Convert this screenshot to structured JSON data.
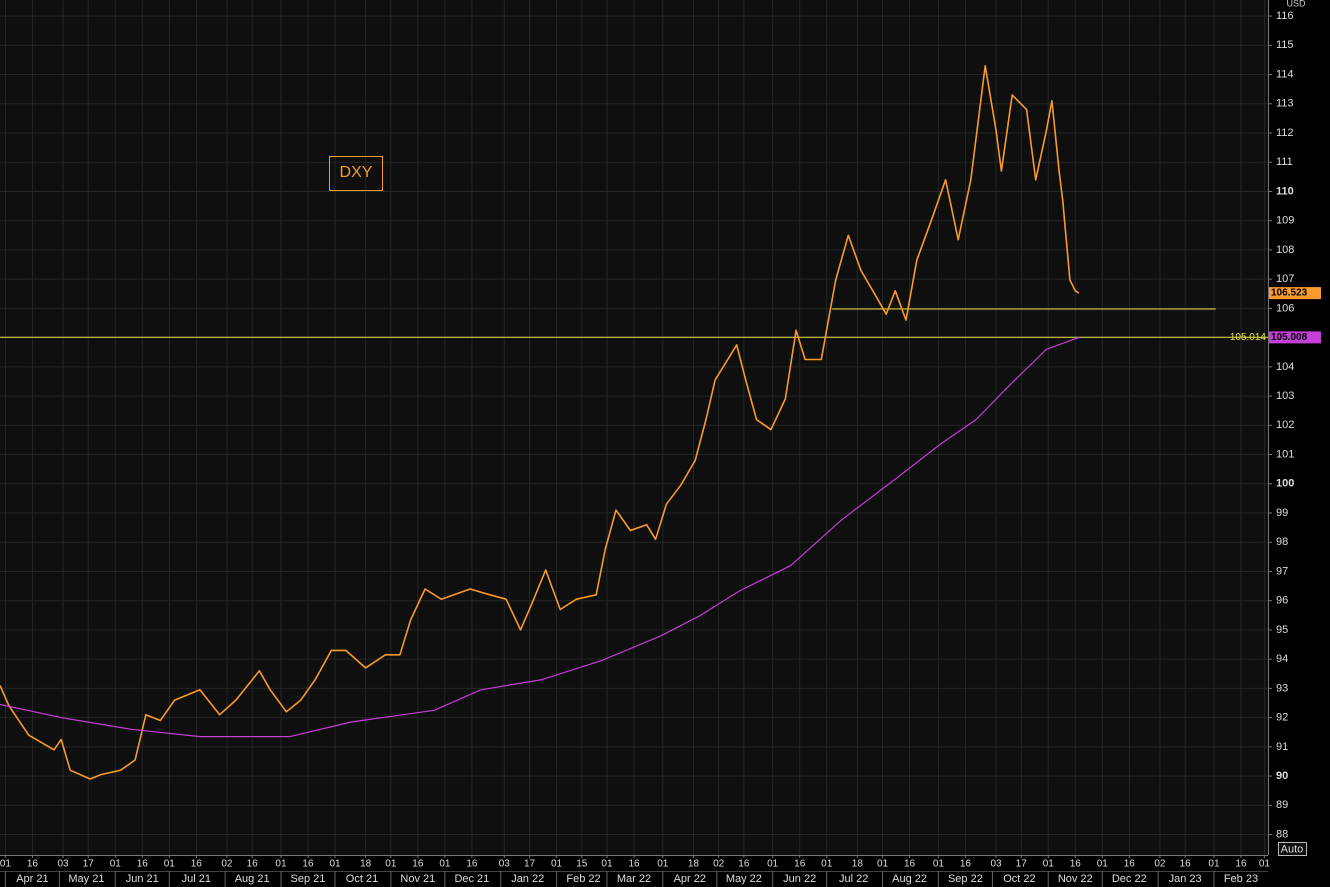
{
  "chart_data": {
    "type": "line",
    "title": "DXY",
    "y_unit": "USD",
    "xlim": [
      "2021-03-29",
      "2023-03-03"
    ],
    "ylim": [
      87.3,
      116.55
    ],
    "yticks": [
      88,
      89,
      90,
      91,
      92,
      93,
      94,
      95,
      96,
      97,
      98,
      99,
      100,
      101,
      102,
      103,
      104,
      105,
      106,
      107,
      108,
      109,
      110,
      111,
      112,
      113,
      114,
      115,
      116
    ],
    "xticks": [
      {
        "value": "2021-04-01",
        "label": "01"
      },
      {
        "value": "2021-04-16",
        "label": "16"
      },
      {
        "value": "2021-05-03",
        "label": "03"
      },
      {
        "value": "2021-05-17",
        "label": "17"
      },
      {
        "value": "2021-06-01",
        "label": "01"
      },
      {
        "value": "2021-06-16",
        "label": "16"
      },
      {
        "value": "2021-07-01",
        "label": "01"
      },
      {
        "value": "2021-07-16",
        "label": "16"
      },
      {
        "value": "2021-08-02",
        "label": "02"
      },
      {
        "value": "2021-08-16",
        "label": "16"
      },
      {
        "value": "2021-09-01",
        "label": "01"
      },
      {
        "value": "2021-09-16",
        "label": "16"
      },
      {
        "value": "2021-10-01",
        "label": "01"
      },
      {
        "value": "2021-10-18",
        "label": "18"
      },
      {
        "value": "2021-11-01",
        "label": "01"
      },
      {
        "value": "2021-11-16",
        "label": "16"
      },
      {
        "value": "2021-12-01",
        "label": "01"
      },
      {
        "value": "2021-12-16",
        "label": "16"
      },
      {
        "value": "2022-01-03",
        "label": "03"
      },
      {
        "value": "2022-01-17",
        "label": "17"
      },
      {
        "value": "2022-02-01",
        "label": "01"
      },
      {
        "value": "2022-02-15",
        "label": "15"
      },
      {
        "value": "2022-03-01",
        "label": "01"
      },
      {
        "value": "2022-03-16",
        "label": "16"
      },
      {
        "value": "2022-04-01",
        "label": "01"
      },
      {
        "value": "2022-04-18",
        "label": "18"
      },
      {
        "value": "2022-05-02",
        "label": "02"
      },
      {
        "value": "2022-05-16",
        "label": "16"
      },
      {
        "value": "2022-06-01",
        "label": "01"
      },
      {
        "value": "2022-06-16",
        "label": "16"
      },
      {
        "value": "2022-07-01",
        "label": "01"
      },
      {
        "value": "2022-07-18",
        "label": "18"
      },
      {
        "value": "2022-08-01",
        "label": "01"
      },
      {
        "value": "2022-08-16",
        "label": "16"
      },
      {
        "value": "2022-09-01",
        "label": "01"
      },
      {
        "value": "2022-09-16",
        "label": "16"
      },
      {
        "value": "2022-10-03",
        "label": "03"
      },
      {
        "value": "2022-10-17",
        "label": "17"
      },
      {
        "value": "2022-11-01",
        "label": "01"
      },
      {
        "value": "2022-11-16",
        "label": "16"
      },
      {
        "value": "2022-12-01",
        "label": "01"
      },
      {
        "value": "2022-12-16",
        "label": "16"
      },
      {
        "value": "2023-01-02",
        "label": "02"
      },
      {
        "value": "2023-01-16",
        "label": "16"
      },
      {
        "value": "2023-02-01",
        "label": "01"
      },
      {
        "value": "2023-02-16",
        "label": "16"
      },
      {
        "value": "2023-03-01",
        "label": "01"
      }
    ],
    "x_month_labels": [
      {
        "value": "2021-04-01",
        "label": "Apr 21"
      },
      {
        "value": "2021-05-01",
        "label": "May 21"
      },
      {
        "value": "2021-06-01",
        "label": "Jun 21"
      },
      {
        "value": "2021-07-01",
        "label": "Jul 21"
      },
      {
        "value": "2021-08-01",
        "label": "Aug 21"
      },
      {
        "value": "2021-09-01",
        "label": "Sep 21"
      },
      {
        "value": "2021-10-01",
        "label": "Oct 21"
      },
      {
        "value": "2021-11-01",
        "label": "Nov 21"
      },
      {
        "value": "2021-12-01",
        "label": "Dec 21"
      },
      {
        "value": "2022-01-01",
        "label": "Jan 22"
      },
      {
        "value": "2022-02-01",
        "label": "Feb 22"
      },
      {
        "value": "2022-03-01",
        "label": "Mar 22"
      },
      {
        "value": "2022-04-01",
        "label": "Apr 22"
      },
      {
        "value": "2022-05-01",
        "label": "May 22"
      },
      {
        "value": "2022-06-01",
        "label": "Jun 22"
      },
      {
        "value": "2022-07-01",
        "label": "Jul 22"
      },
      {
        "value": "2022-08-01",
        "label": "Aug 22"
      },
      {
        "value": "2022-09-01",
        "label": "Sep 22"
      },
      {
        "value": "2022-10-01",
        "label": "Oct 22"
      },
      {
        "value": "2022-11-01",
        "label": "Nov 22"
      },
      {
        "value": "2022-12-01",
        "label": "Dec 22"
      },
      {
        "value": "2023-01-01",
        "label": "Jan 23"
      },
      {
        "value": "2023-02-01",
        "label": "Feb 23"
      }
    ],
    "grid": true,
    "series": [
      {
        "color": "#f89a2c",
        "x": [
          "2021-03-29",
          "2021-04-03",
          "2021-04-14",
          "2021-04-28",
          "2021-05-02",
          "2021-05-07",
          "2021-05-18",
          "2021-05-24",
          "2021-06-04",
          "2021-06-12",
          "2021-06-18",
          "2021-06-26",
          "2021-07-04",
          "2021-07-18",
          "2021-07-29",
          "2021-08-07",
          "2021-08-20",
          "2021-08-26",
          "2021-09-04",
          "2021-09-12",
          "2021-09-20",
          "2021-09-29",
          "2021-10-07",
          "2021-10-18",
          "2021-10-29",
          "2021-11-06",
          "2021-11-12",
          "2021-11-20",
          "2021-11-29",
          "2021-12-15",
          "2021-12-26",
          "2022-01-04",
          "2022-01-12",
          "2022-01-18",
          "2022-01-26",
          "2022-02-03",
          "2022-02-12",
          "2022-02-23",
          "2022-02-28",
          "2022-03-06",
          "2022-03-14",
          "2022-03-23",
          "2022-03-28",
          "2022-04-03",
          "2022-04-11",
          "2022-04-19",
          "2022-04-25",
          "2022-04-30",
          "2022-05-12",
          "2022-05-17",
          "2022-05-23",
          "2022-05-31",
          "2022-06-08",
          "2022-06-14",
          "2022-06-19",
          "2022-06-28",
          "2022-07-06",
          "2022-07-13",
          "2022-07-20",
          "2022-07-28",
          "2022-08-03",
          "2022-08-08",
          "2022-08-14",
          "2022-08-20",
          "2022-08-28",
          "2022-09-05",
          "2022-09-12",
          "2022-09-19",
          "2022-09-27",
          "2022-10-03",
          "2022-10-06",
          "2022-10-12",
          "2022-10-20",
          "2022-10-25",
          "2022-10-31",
          "2022-11-03",
          "2022-11-07",
          "2022-11-09",
          "2022-11-13",
          "2022-11-16",
          "2022-11-18"
        ],
        "values": [
          93.1,
          92.4,
          91.4,
          90.9,
          91.25,
          90.2,
          89.9,
          90.05,
          90.2,
          90.55,
          92.1,
          91.9,
          92.6,
          92.95,
          92.1,
          92.6,
          93.6,
          92.95,
          92.2,
          92.6,
          93.3,
          94.3,
          94.3,
          93.7,
          94.15,
          94.15,
          95.35,
          96.4,
          96.05,
          96.4,
          96.2,
          96.05,
          95.0,
          95.85,
          97.05,
          95.7,
          96.05,
          96.2,
          97.75,
          99.1,
          98.4,
          98.6,
          98.1,
          99.3,
          99.95,
          100.8,
          102.2,
          103.55,
          104.75,
          103.55,
          102.2,
          101.85,
          102.9,
          105.25,
          104.25,
          104.25,
          106.97,
          108.5,
          107.3,
          106.45,
          105.8,
          106.6,
          105.6,
          107.65,
          109.0,
          110.4,
          108.35,
          110.4,
          114.3,
          112.1,
          110.7,
          113.3,
          112.8,
          110.4,
          112.1,
          113.1,
          110.7,
          109.7,
          106.97,
          106.6,
          106.523
        ],
        "last_label": "106.523"
      },
      {
        "color": "#c43fd6",
        "x": [
          "2021-03-29",
          "2021-05-02",
          "2021-06-10",
          "2021-07-18",
          "2021-09-06",
          "2021-10-10",
          "2021-11-25",
          "2021-12-21",
          "2022-01-24",
          "2022-02-26",
          "2022-03-31",
          "2022-04-22",
          "2022-05-14",
          "2022-06-11",
          "2022-07-09",
          "2022-08-11",
          "2022-09-02",
          "2022-09-22",
          "2022-10-11",
          "2022-10-31",
          "2022-11-18"
        ],
        "values": [
          92.45,
          92.0,
          91.6,
          91.35,
          91.35,
          91.85,
          92.25,
          92.95,
          93.3,
          93.95,
          94.8,
          95.5,
          96.35,
          97.2,
          98.75,
          100.3,
          101.35,
          102.2,
          103.4,
          104.6,
          105.008
        ],
        "last_label": "105.008"
      }
    ],
    "hlines": [
      {
        "value": 105.014,
        "label": "105.014",
        "color": "#e8e04a",
        "from": "2021-03-29",
        "to": "2023-03-03"
      },
      {
        "value": 105.98,
        "color": "#e8e04a",
        "from": "2022-07-04",
        "to": "2023-02-02"
      }
    ],
    "button": "Auto"
  }
}
